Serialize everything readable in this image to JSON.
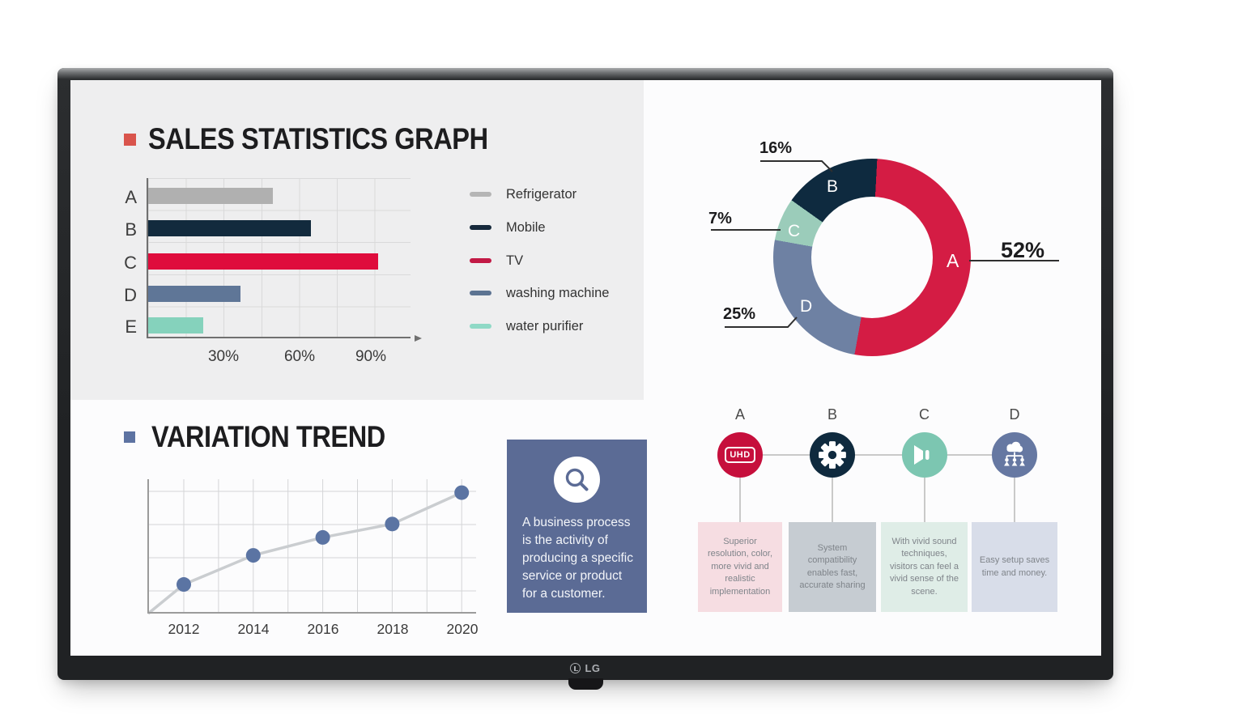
{
  "monitor": {
    "brand_logo": "LG"
  },
  "sales_section": {
    "title": "SALES STATISTICS GRAPH",
    "bullet_color": "#d9544c"
  },
  "trend_section": {
    "title": "VARIATION TREND",
    "bullet_color": "#5d73a2"
  },
  "chart_data": [
    {
      "id": "sales-bar-chart",
      "type": "bar",
      "orientation": "horizontal",
      "title": "SALES STATISTICS GRAPH",
      "categories": [
        "A",
        "B",
        "C",
        "D",
        "E"
      ],
      "values": [
        50,
        65,
        92,
        37,
        22
      ],
      "unit": "percent",
      "xlim": [
        0,
        105
      ],
      "grid_step": 15,
      "xticks": [
        {
          "label": "30%",
          "value": 30
        },
        {
          "label": "60%",
          "value": 60
        },
        {
          "label": "90%",
          "value": 90
        }
      ],
      "bar_colors": [
        "#b0b0b0",
        "#122a3d",
        "#df0c3c",
        "#5f7697",
        "#85d2bc"
      ],
      "legend_position": "right",
      "legend": [
        {
          "label": "Refrigerator",
          "color": "#b5b5b5"
        },
        {
          "label": "Mobile",
          "color": "#16293b"
        },
        {
          "label": "TV",
          "color": "#c21945"
        },
        {
          "label": "washing machine",
          "color": "#5c7392"
        },
        {
          "label": "water purifier",
          "color": "#8fd9c6"
        }
      ]
    },
    {
      "id": "market-share-donut",
      "type": "pie",
      "style": "donut",
      "clockwise_from_top": true,
      "start_offset_deg": 3,
      "segments": [
        {
          "label": "A",
          "value": 52,
          "pct_label": "52%",
          "color": "#d41c44"
        },
        {
          "label": "D",
          "value": 25,
          "pct_label": "25%",
          "color": "#6e81a3"
        },
        {
          "label": "C",
          "value": 7,
          "pct_label": "7%",
          "color": "#9bccba"
        },
        {
          "label": "B",
          "value": 16,
          "pct_label": "16%",
          "color": "#0e2a3f"
        }
      ]
    },
    {
      "id": "variation-line-chart",
      "type": "line",
      "title": "VARIATION TREND",
      "x": [
        "2012",
        "2014",
        "2016",
        "2018",
        "2020"
      ],
      "values": [
        1.3,
        2.6,
        3.4,
        4.0,
        5.4
      ],
      "ylim": [
        0,
        6
      ],
      "starts_at_origin": true,
      "grid": true,
      "line_color": "#cacdd0",
      "point_color": "#5b74a3"
    }
  ],
  "process_card": {
    "background": "#5b6b95",
    "icon": "magnifier-icon",
    "text": "A business process is the activity of producing a specific service or product for a customer."
  },
  "features": {
    "items": [
      {
        "label": "A",
        "icon": "uhd-tv-icon",
        "icon_text": "UHD",
        "circle_color": "#c60f3c",
        "box_color": "#f6dde2",
        "text": "Superior resolution, color, more vivid and realistic implementation"
      },
      {
        "label": "B",
        "icon": "gear-icon",
        "circle_color": "#0f2a3e",
        "box_color": "#c6ccd2",
        "text": "System compatibility enables fast, accurate sharing"
      },
      {
        "label": "C",
        "icon": "speaker-icon",
        "circle_color": "#7cc6b1",
        "box_color": "#dfede7",
        "text": "With vivid sound techniques, visitors can feel a vivid sense of the scene."
      },
      {
        "label": "D",
        "icon": "cloud-network-icon",
        "circle_color": "#6678a2",
        "box_color": "#d8dde9",
        "text": "Easy setup saves time and money."
      }
    ]
  }
}
